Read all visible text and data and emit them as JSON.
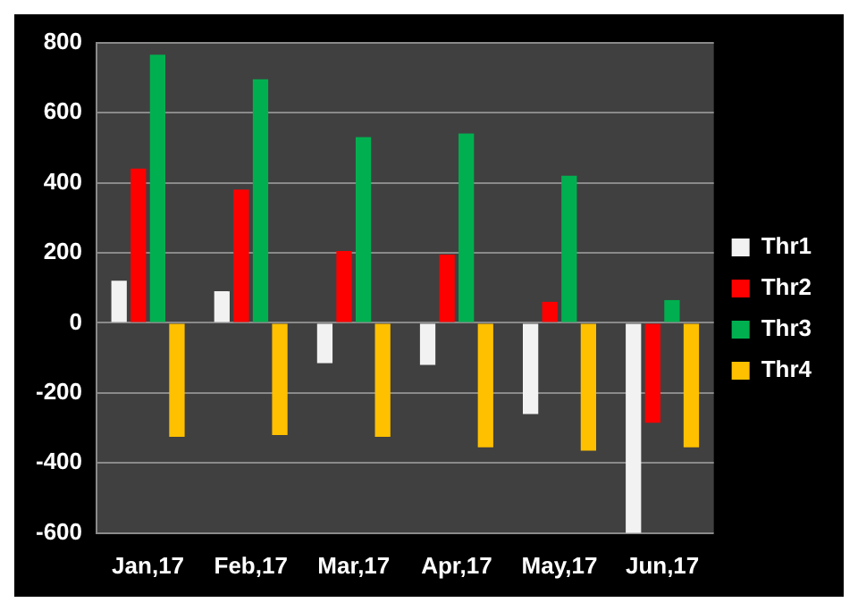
{
  "chart_data": {
    "type": "bar",
    "categories": [
      "Jan,17",
      "Feb,17",
      "Mar,17",
      "Apr,17",
      "May,17",
      "Jun,17"
    ],
    "series": [
      {
        "name": "Thr1",
        "color": "#f2f2f2",
        "values": [
          120,
          90,
          -115,
          -120,
          -260,
          -600
        ]
      },
      {
        "name": "Thr2",
        "color": "#ff0000",
        "values": [
          440,
          380,
          205,
          195,
          60,
          -285
        ]
      },
      {
        "name": "Thr3",
        "color": "#00b050",
        "values": [
          765,
          695,
          530,
          540,
          420,
          65
        ]
      },
      {
        "name": "Thr4",
        "color": "#ffc000",
        "values": [
          -325,
          -320,
          -325,
          -355,
          -365,
          -355
        ]
      }
    ],
    "ylim": [
      -600,
      800
    ],
    "yticks": [
      -600,
      -400,
      -200,
      0,
      200,
      400,
      600,
      800
    ],
    "grid": "y",
    "legend": "right"
  }
}
